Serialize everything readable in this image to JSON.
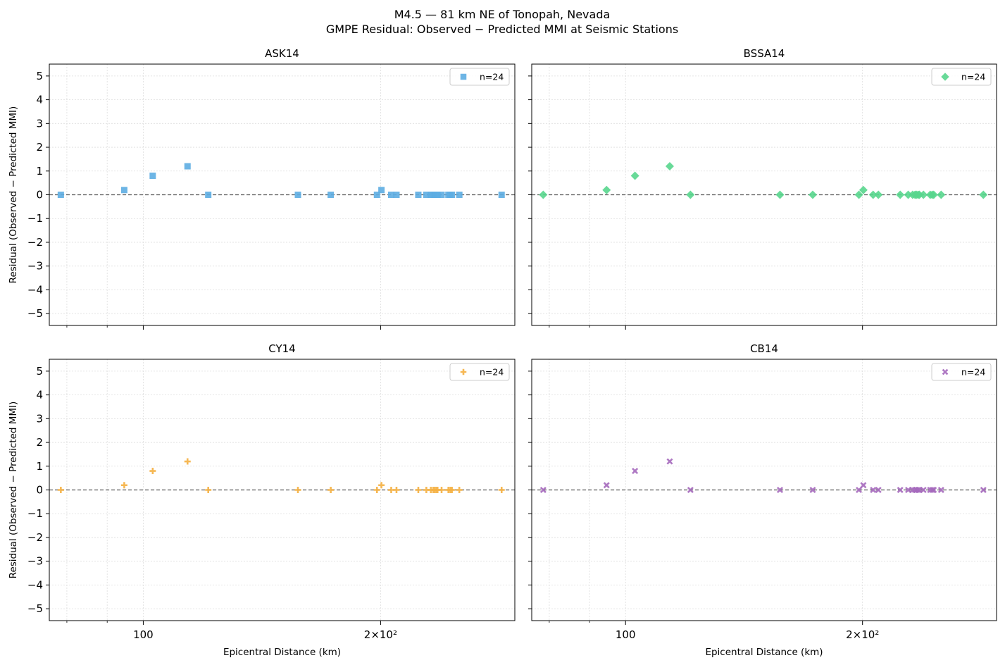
{
  "figure": {
    "title_line1": "M4.5 — 81 km NE of Tonopah, Nevada",
    "title_line2": "GMPE Residual: Observed − Predicted MMI at Seismic Stations"
  },
  "chart_data": [
    {
      "type": "scatter",
      "title": "ASK14",
      "xlabel": "",
      "ylabel": "Residual (Observed − Predicted MMI)",
      "xscale": "log",
      "xlim": [
        76,
        296
      ],
      "ylim": [
        -5.5,
        5.5
      ],
      "xticks": [
        {
          "value": 100,
          "label": "100"
        },
        {
          "value": 200,
          "label": "2×10²"
        }
      ],
      "yticks": [
        -5,
        -4,
        -3,
        -2,
        -1,
        0,
        1,
        2,
        3,
        4,
        5
      ],
      "grid": true,
      "legend": {
        "position": "top-right",
        "label": "n=24"
      },
      "zero_line": 0,
      "marker": "square",
      "color": "#5DADE2",
      "points": [
        {
          "x": 78.6,
          "y": 0
        },
        {
          "x": 94.6,
          "y": 0.2
        },
        {
          "x": 102.8,
          "y": 0.8
        },
        {
          "x": 113.8,
          "y": 1.2
        },
        {
          "x": 120.9,
          "y": 0
        },
        {
          "x": 157.1,
          "y": 0
        },
        {
          "x": 172.9,
          "y": 0
        },
        {
          "x": 197.9,
          "y": 0
        },
        {
          "x": 200.5,
          "y": 0.2
        },
        {
          "x": 206.3,
          "y": 0
        },
        {
          "x": 209.5,
          "y": 0
        },
        {
          "x": 223.3,
          "y": 0
        },
        {
          "x": 228.6,
          "y": 0
        },
        {
          "x": 231.6,
          "y": 0
        },
        {
          "x": 233.2,
          "y": 0
        },
        {
          "x": 234.1,
          "y": 0
        },
        {
          "x": 235.3,
          "y": 0
        },
        {
          "x": 236.2,
          "y": 0
        },
        {
          "x": 239.0,
          "y": 0
        },
        {
          "x": 243.8,
          "y": 0
        },
        {
          "x": 245.2,
          "y": 0
        },
        {
          "x": 246.3,
          "y": 0
        },
        {
          "x": 251.7,
          "y": 0
        },
        {
          "x": 284.8,
          "y": 0
        }
      ]
    },
    {
      "type": "scatter",
      "title": "BSSA14",
      "xlabel": "",
      "ylabel": "",
      "xscale": "log",
      "xlim": [
        76,
        296
      ],
      "ylim": [
        -5.5,
        5.5
      ],
      "xticks": [
        {
          "value": 100,
          "label": "100"
        },
        {
          "value": 200,
          "label": "2×10²"
        }
      ],
      "yticks": [
        -5,
        -4,
        -3,
        -2,
        -1,
        0,
        1,
        2,
        3,
        4,
        5
      ],
      "grid": true,
      "legend": {
        "position": "top-right",
        "label": "n=24"
      },
      "zero_line": 0,
      "marker": "diamond",
      "color": "#58D68D",
      "points": [
        {
          "x": 78.6,
          "y": 0
        },
        {
          "x": 94.6,
          "y": 0.2
        },
        {
          "x": 102.8,
          "y": 0.8
        },
        {
          "x": 113.8,
          "y": 1.2
        },
        {
          "x": 120.9,
          "y": 0
        },
        {
          "x": 157.1,
          "y": 0
        },
        {
          "x": 172.9,
          "y": 0
        },
        {
          "x": 197.9,
          "y": 0
        },
        {
          "x": 200.5,
          "y": 0.2
        },
        {
          "x": 206.3,
          "y": 0
        },
        {
          "x": 209.5,
          "y": 0
        },
        {
          "x": 223.3,
          "y": 0
        },
        {
          "x": 228.6,
          "y": 0
        },
        {
          "x": 231.6,
          "y": 0
        },
        {
          "x": 233.2,
          "y": 0
        },
        {
          "x": 234.1,
          "y": 0
        },
        {
          "x": 235.3,
          "y": 0
        },
        {
          "x": 236.2,
          "y": 0
        },
        {
          "x": 239.0,
          "y": 0
        },
        {
          "x": 243.8,
          "y": 0
        },
        {
          "x": 245.2,
          "y": 0
        },
        {
          "x": 246.3,
          "y": 0
        },
        {
          "x": 251.7,
          "y": 0
        },
        {
          "x": 284.8,
          "y": 0
        }
      ]
    },
    {
      "type": "scatter",
      "title": "CY14",
      "xlabel": "Epicentral Distance (km)",
      "ylabel": "Residual (Observed − Predicted MMI)",
      "xscale": "log",
      "xlim": [
        76,
        296
      ],
      "ylim": [
        -5.5,
        5.5
      ],
      "xticks": [
        {
          "value": 100,
          "label": "100"
        },
        {
          "value": 200,
          "label": "2×10²"
        }
      ],
      "yticks": [
        -5,
        -4,
        -3,
        -2,
        -1,
        0,
        1,
        2,
        3,
        4,
        5
      ],
      "grid": true,
      "legend": {
        "position": "top-right",
        "label": "n=24"
      },
      "zero_line": 0,
      "marker": "plus",
      "color": "#F5B041",
      "points": [
        {
          "x": 78.6,
          "y": 0
        },
        {
          "x": 94.6,
          "y": 0.2
        },
        {
          "x": 102.8,
          "y": 0.8
        },
        {
          "x": 113.8,
          "y": 1.2
        },
        {
          "x": 120.9,
          "y": 0
        },
        {
          "x": 157.1,
          "y": 0
        },
        {
          "x": 172.9,
          "y": 0
        },
        {
          "x": 197.9,
          "y": 0
        },
        {
          "x": 200.5,
          "y": 0.2
        },
        {
          "x": 206.3,
          "y": 0
        },
        {
          "x": 209.5,
          "y": 0
        },
        {
          "x": 223.3,
          "y": 0
        },
        {
          "x": 228.6,
          "y": 0
        },
        {
          "x": 231.6,
          "y": 0
        },
        {
          "x": 233.2,
          "y": 0
        },
        {
          "x": 234.1,
          "y": 0
        },
        {
          "x": 235.3,
          "y": 0
        },
        {
          "x": 236.2,
          "y": 0
        },
        {
          "x": 239.0,
          "y": 0
        },
        {
          "x": 243.8,
          "y": 0
        },
        {
          "x": 245.2,
          "y": 0
        },
        {
          "x": 246.3,
          "y": 0
        },
        {
          "x": 251.7,
          "y": 0
        },
        {
          "x": 284.8,
          "y": 0
        }
      ]
    },
    {
      "type": "scatter",
      "title": "CB14",
      "xlabel": "Epicentral Distance (km)",
      "ylabel": "",
      "xscale": "log",
      "xlim": [
        76,
        296
      ],
      "ylim": [
        -5.5,
        5.5
      ],
      "xticks": [
        {
          "value": 100,
          "label": "100"
        },
        {
          "value": 200,
          "label": "2×10²"
        }
      ],
      "yticks": [
        -5,
        -4,
        -3,
        -2,
        -1,
        0,
        1,
        2,
        3,
        4,
        5
      ],
      "grid": true,
      "legend": {
        "position": "top-right",
        "label": "n=24"
      },
      "zero_line": 0,
      "marker": "x",
      "color": "#A569BD",
      "points": [
        {
          "x": 78.6,
          "y": 0
        },
        {
          "x": 94.6,
          "y": 0.2
        },
        {
          "x": 102.8,
          "y": 0.8
        },
        {
          "x": 113.8,
          "y": 1.2
        },
        {
          "x": 120.9,
          "y": 0
        },
        {
          "x": 157.1,
          "y": 0
        },
        {
          "x": 172.9,
          "y": 0
        },
        {
          "x": 197.9,
          "y": 0
        },
        {
          "x": 200.5,
          "y": 0.2
        },
        {
          "x": 206.3,
          "y": 0
        },
        {
          "x": 209.5,
          "y": 0
        },
        {
          "x": 223.3,
          "y": 0
        },
        {
          "x": 228.6,
          "y": 0
        },
        {
          "x": 231.6,
          "y": 0
        },
        {
          "x": 233.2,
          "y": 0
        },
        {
          "x": 234.1,
          "y": 0
        },
        {
          "x": 235.3,
          "y": 0
        },
        {
          "x": 236.2,
          "y": 0
        },
        {
          "x": 239.0,
          "y": 0
        },
        {
          "x": 243.8,
          "y": 0
        },
        {
          "x": 245.2,
          "y": 0
        },
        {
          "x": 246.3,
          "y": 0
        },
        {
          "x": 251.7,
          "y": 0
        },
        {
          "x": 284.8,
          "y": 0
        }
      ]
    }
  ]
}
